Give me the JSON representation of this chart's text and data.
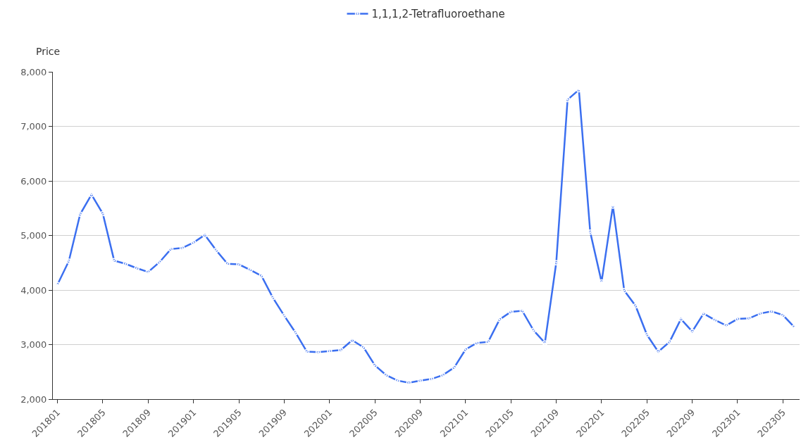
{
  "chart_data": {
    "type": "line",
    "ylabel": "Price",
    "categories": [
      "201801",
      null,
      null,
      null,
      "201805",
      null,
      null,
      null,
      "201809",
      null,
      null,
      null,
      "201901",
      null,
      null,
      null,
      "201905",
      null,
      null,
      null,
      "201909",
      null,
      null,
      null,
      "202001",
      null,
      null,
      null,
      "202005",
      null,
      null,
      null,
      "202009",
      null,
      null,
      null,
      "202101",
      null,
      null,
      null,
      "202105",
      null,
      null,
      null,
      "202109",
      null,
      null,
      null,
      "202201",
      null,
      null,
      null,
      "202205",
      null,
      null,
      null,
      "202209",
      null,
      null,
      null,
      "202301",
      null,
      null,
      null,
      "202305",
      null
    ],
    "series": [
      {
        "name": "1,1,1,2-Tetrafluoroethane",
        "color": "#3b6ff0",
        "values": [
          4100,
          4530,
          5390,
          5750,
          5400,
          4540,
          4480,
          4400,
          4330,
          4510,
          4750,
          4770,
          4870,
          5010,
          4730,
          4480,
          4470,
          4370,
          4260,
          3860,
          3530,
          3220,
          2870,
          2860,
          2880,
          2900,
          3080,
          2950,
          2620,
          2440,
          2340,
          2300,
          2340,
          2370,
          2440,
          2580,
          2910,
          3030,
          3050,
          3460,
          3600,
          3620,
          3260,
          3030,
          4500,
          7490,
          7670,
          5060,
          4150,
          5540,
          3990,
          3710,
          3180,
          2870,
          3050,
          3470,
          3240,
          3570,
          3450,
          3350,
          3470,
          3480,
          3570,
          3610,
          3540,
          3320
        ]
      }
    ],
    "ylim": [
      2000,
      8000
    ],
    "yticks": [
      {
        "value": 2000,
        "label": "2,000"
      },
      {
        "value": 3000,
        "label": "3,000"
      },
      {
        "value": 4000,
        "label": "4,000"
      },
      {
        "value": 5000,
        "label": "5,000"
      },
      {
        "value": 6000,
        "label": "6,000"
      },
      {
        "value": 7000,
        "label": "7,000"
      },
      {
        "value": 8000,
        "label": "8,000"
      }
    ],
    "grid": "y",
    "legend": "top",
    "marker": "circle",
    "line_style": "solid"
  }
}
